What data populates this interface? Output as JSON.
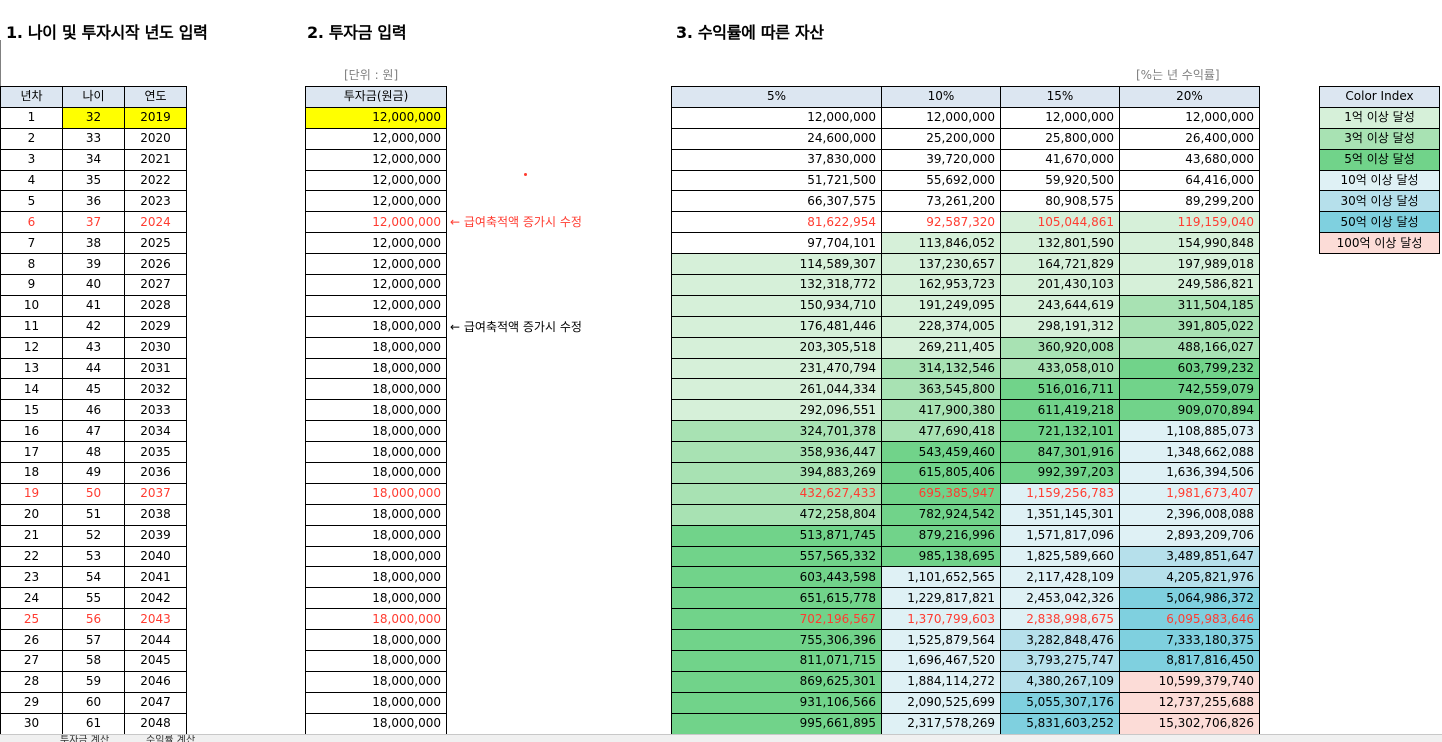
{
  "sections": {
    "s1": "1. 나이 및 투자시작 년도 입력",
    "s2": "2. 투자금 입력",
    "s3": "3. 수익률에 따른 자산"
  },
  "notes": {
    "unit": "[단위 : 원]",
    "rate": "[%는 년 수익률]",
    "arrow_note": "← 급여축적액 증가시 수정"
  },
  "table1": {
    "headers": [
      "년차",
      "나이",
      "연도"
    ],
    "rows": [
      [
        "1",
        "32",
        "2019"
      ],
      [
        "2",
        "33",
        "2020"
      ],
      [
        "3",
        "34",
        "2021"
      ],
      [
        "4",
        "35",
        "2022"
      ],
      [
        "5",
        "36",
        "2023"
      ],
      [
        "6",
        "37",
        "2024"
      ],
      [
        "7",
        "38",
        "2025"
      ],
      [
        "8",
        "39",
        "2026"
      ],
      [
        "9",
        "40",
        "2027"
      ],
      [
        "10",
        "41",
        "2028"
      ],
      [
        "11",
        "42",
        "2029"
      ],
      [
        "12",
        "43",
        "2030"
      ],
      [
        "13",
        "44",
        "2031"
      ],
      [
        "14",
        "45",
        "2032"
      ],
      [
        "15",
        "46",
        "2033"
      ],
      [
        "16",
        "47",
        "2034"
      ],
      [
        "17",
        "48",
        "2035"
      ],
      [
        "18",
        "49",
        "2036"
      ],
      [
        "19",
        "50",
        "2037"
      ],
      [
        "20",
        "51",
        "2038"
      ],
      [
        "21",
        "52",
        "2039"
      ],
      [
        "22",
        "53",
        "2040"
      ],
      [
        "23",
        "54",
        "2041"
      ],
      [
        "24",
        "55",
        "2042"
      ],
      [
        "25",
        "56",
        "2043"
      ],
      [
        "26",
        "57",
        "2044"
      ],
      [
        "27",
        "58",
        "2045"
      ],
      [
        "28",
        "59",
        "2046"
      ],
      [
        "29",
        "60",
        "2047"
      ],
      [
        "30",
        "61",
        "2048"
      ]
    ]
  },
  "table2": {
    "header": "투자금(원금)",
    "rows": [
      "12,000,000",
      "12,000,000",
      "12,000,000",
      "12,000,000",
      "12,000,000",
      "12,000,000",
      "12,000,000",
      "12,000,000",
      "12,000,000",
      "12,000,000",
      "18,000,000",
      "18,000,000",
      "18,000,000",
      "18,000,000",
      "18,000,000",
      "18,000,000",
      "18,000,000",
      "18,000,000",
      "18,000,000",
      "18,000,000",
      "18,000,000",
      "18,000,000",
      "18,000,000",
      "18,000,000",
      "18,000,000",
      "18,000,000",
      "18,000,000",
      "18,000,000",
      "18,000,000",
      "18,000,000"
    ]
  },
  "table3": {
    "headers": [
      "5%",
      "10%",
      "15%",
      "20%"
    ],
    "rows": [
      [
        "12,000,000",
        "12,000,000",
        "12,000,000",
        "12,000,000"
      ],
      [
        "24,600,000",
        "25,200,000",
        "25,800,000",
        "26,400,000"
      ],
      [
        "37,830,000",
        "39,720,000",
        "41,670,000",
        "43,680,000"
      ],
      [
        "51,721,500",
        "55,692,000",
        "59,920,500",
        "64,416,000"
      ],
      [
        "66,307,575",
        "73,261,200",
        "80,908,575",
        "89,299,200"
      ],
      [
        "81,622,954",
        "92,587,320",
        "105,044,861",
        "119,159,040"
      ],
      [
        "97,704,101",
        "113,846,052",
        "132,801,590",
        "154,990,848"
      ],
      [
        "114,589,307",
        "137,230,657",
        "164,721,829",
        "197,989,018"
      ],
      [
        "132,318,772",
        "162,953,723",
        "201,430,103",
        "249,586,821"
      ],
      [
        "150,934,710",
        "191,249,095",
        "243,644,619",
        "311,504,185"
      ],
      [
        "176,481,446",
        "228,374,005",
        "298,191,312",
        "391,805,022"
      ],
      [
        "203,305,518",
        "269,211,405",
        "360,920,008",
        "488,166,027"
      ],
      [
        "231,470,794",
        "314,132,546",
        "433,058,010",
        "603,799,232"
      ],
      [
        "261,044,334",
        "363,545,800",
        "516,016,711",
        "742,559,079"
      ],
      [
        "292,096,551",
        "417,900,380",
        "611,419,218",
        "909,070,894"
      ],
      [
        "324,701,378",
        "477,690,418",
        "721,132,101",
        "1,108,885,073"
      ],
      [
        "358,936,447",
        "543,459,460",
        "847,301,916",
        "1,348,662,088"
      ],
      [
        "394,883,269",
        "615,805,406",
        "992,397,203",
        "1,636,394,506"
      ],
      [
        "432,627,433",
        "695,385,947",
        "1,159,256,783",
        "1,981,673,407"
      ],
      [
        "472,258,804",
        "782,924,542",
        "1,351,145,301",
        "2,396,008,088"
      ],
      [
        "513,871,745",
        "879,216,996",
        "1,571,817,096",
        "2,893,209,706"
      ],
      [
        "557,565,332",
        "985,138,695",
        "1,825,589,660",
        "3,489,851,647"
      ],
      [
        "603,443,598",
        "1,101,652,565",
        "2,117,428,109",
        "4,205,821,976"
      ],
      [
        "651,615,778",
        "1,229,817,821",
        "2,453,042,326",
        "5,064,986,372"
      ],
      [
        "702,196,567",
        "1,370,799,603",
        "2,838,998,675",
        "6,095,983,646"
      ],
      [
        "755,306,396",
        "1,525,879,564",
        "3,282,848,476",
        "7,333,180,375"
      ],
      [
        "811,071,715",
        "1,696,467,520",
        "3,793,275,747",
        "8,817,816,450"
      ],
      [
        "869,625,301",
        "1,884,114,272",
        "4,380,267,109",
        "10,599,379,740"
      ],
      [
        "931,106,566",
        "2,090,525,699",
        "5,055,307,176",
        "12,737,255,688"
      ],
      [
        "995,661,895",
        "2,317,578,269",
        "5,831,603,252",
        "15,302,706,826"
      ]
    ]
  },
  "color_index": {
    "header": "Color Index",
    "items": [
      "1억 이상 달성",
      "3억 이상 달성",
      "5억 이상 달성",
      "10억 이상 달성",
      "30억 이상 달성",
      "50억 이상 달성",
      "100억 이상 달성"
    ]
  },
  "sheet_tabs": [
    "투자금 계산",
    "수익률 계산"
  ],
  "colors": {
    "highlight": "#ffff00",
    "header": "#dce6f1",
    "red_text": "#ff3b30",
    "tier_1e8": "#d6f0d9",
    "tier_3e8": "#a8e2b3",
    "tier_5e8": "#71d38a",
    "tier_1e9": "#dff1f5",
    "tier_3e9": "#b6e0eb",
    "tier_5e9": "#7fd0df",
    "tier_1e10": "#fcdcd7"
  }
}
